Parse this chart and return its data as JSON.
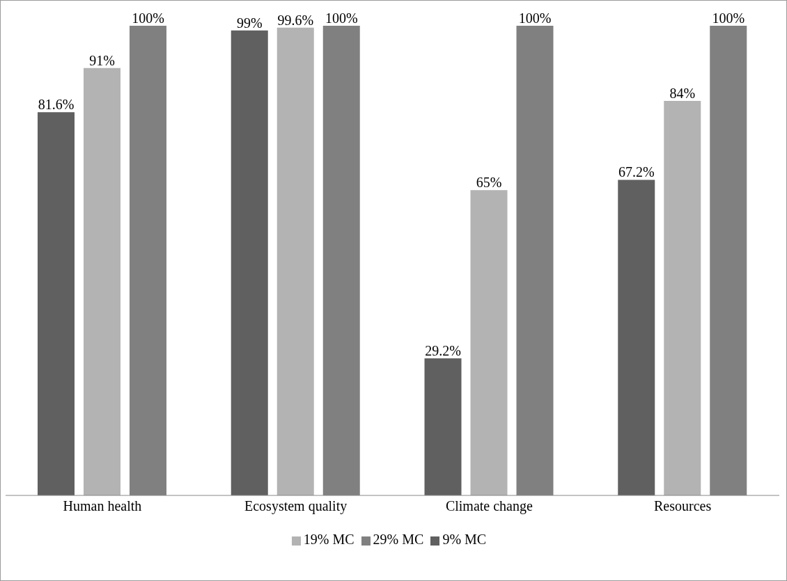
{
  "chart_data": {
    "type": "bar",
    "categories": [
      "Human health",
      "Ecosystem quality",
      "Climate change",
      "Resources"
    ],
    "series": [
      {
        "name": "9% MC",
        "color": "#606060",
        "values": [
          81.6,
          99,
          29.2,
          67.2
        ],
        "value_labels": [
          "81.6%",
          "99%",
          "29.2%",
          "67.2%"
        ]
      },
      {
        "name": "19% MC",
        "color": "#b3b3b3",
        "values": [
          91,
          99.6,
          65,
          84
        ],
        "value_labels": [
          "91%",
          "99.6%",
          "65%",
          "84%"
        ]
      },
      {
        "name": "29% MC",
        "color": "#808080",
        "values": [
          100,
          100,
          100,
          100
        ],
        "value_labels": [
          "100%",
          "100%",
          "100%",
          "100%"
        ]
      }
    ],
    "ylim": [
      0,
      100
    ],
    "grid": false,
    "legend": "bottom"
  }
}
